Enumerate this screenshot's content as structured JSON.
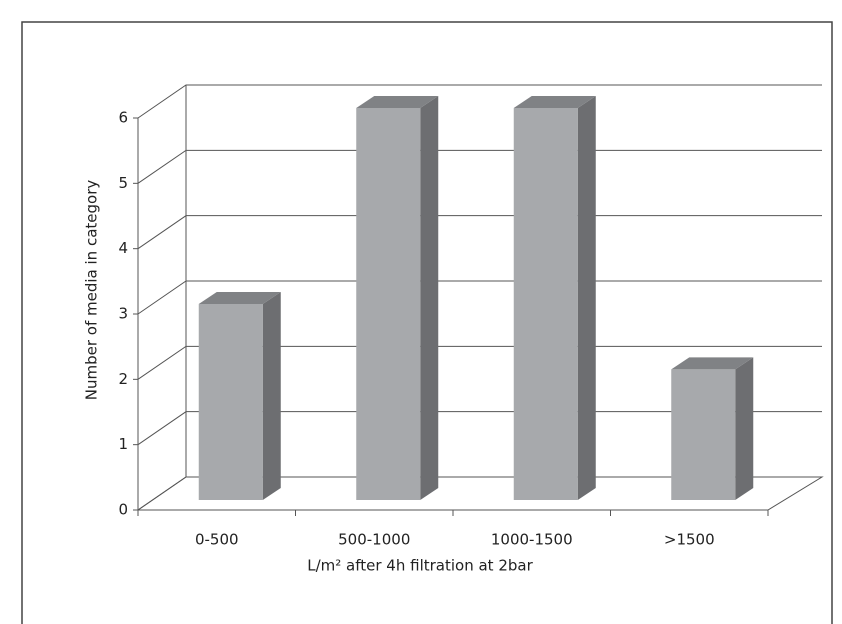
{
  "chart_data": {
    "type": "bar3d",
    "categories": [
      "0-500",
      "500-1000",
      "1000-1500",
      ">1500"
    ],
    "values": [
      3,
      6,
      6,
      2
    ],
    "xlabel": "L/m² after 4h filtration at 2bar",
    "ylabel": "Number of media in category",
    "ylim": [
      0,
      6
    ],
    "yticks": [
      0,
      1,
      2,
      3,
      4,
      5,
      6
    ],
    "color": "#a7a9ac",
    "grid": true
  }
}
